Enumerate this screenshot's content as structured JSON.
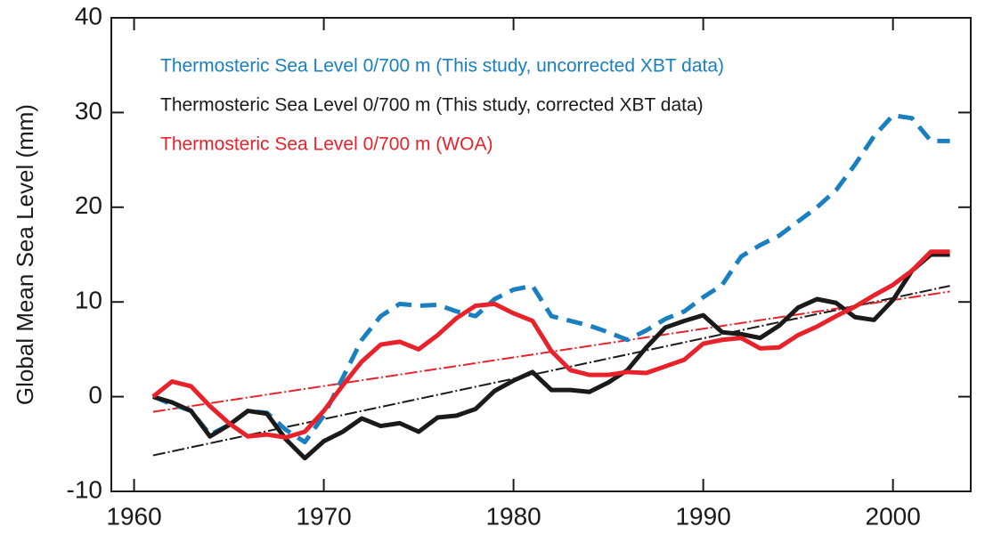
{
  "chart_data": {
    "type": "line",
    "ylabel": "Global Mean Sea Level  (mm)",
    "x": [
      1961,
      1962,
      1963,
      1964,
      1965,
      1966,
      1967,
      1968,
      1969,
      1970,
      1971,
      1972,
      1973,
      1974,
      1975,
      1976,
      1977,
      1978,
      1979,
      1980,
      1981,
      1982,
      1983,
      1984,
      1985,
      1986,
      1987,
      1988,
      1989,
      1990,
      1991,
      1992,
      1993,
      1994,
      1995,
      1996,
      1997,
      1998,
      1999,
      2000,
      2001,
      2002,
      2003
    ],
    "series": [
      {
        "name": "Thermosteric Sea Level 0/700 m (This study, uncorrected XBT data)",
        "color": "#1a7fc1",
        "dashed": true,
        "values": [
          0,
          -0.8,
          -1.5,
          -4,
          -3,
          -1.5,
          -1.7,
          -3.5,
          -4.8,
          -2,
          2,
          6,
          8.5,
          9.8,
          9.6,
          9.7,
          9,
          8.5,
          10.3,
          11.3,
          11.7,
          8.5,
          8,
          7.5,
          6.8,
          6,
          7,
          8.2,
          9,
          10.5,
          11.8,
          14.8,
          16,
          17,
          18.5,
          20,
          21.8,
          24.5,
          27.5,
          29.7,
          29.4,
          27,
          27
        ]
      },
      {
        "name": "Thermosteric Sea Level 0/700 m (This study, corrected XBT data)",
        "color": "#1a1a1a",
        "dashed": false,
        "values": [
          0,
          -0.6,
          -1.5,
          -4.2,
          -3,
          -1.5,
          -1.8,
          -4.5,
          -6.5,
          -4.7,
          -3.7,
          -2.3,
          -3.1,
          -2.8,
          -3.7,
          -2.2,
          -2,
          -1.3,
          0.6,
          1.7,
          2.6,
          0.7,
          0.7,
          0.5,
          1.5,
          2.8,
          5.2,
          7.3,
          8,
          8.6,
          6.8,
          6.6,
          6.2,
          7.5,
          9.4,
          10.3,
          9.9,
          8.4,
          8.1,
          10.2,
          13.3,
          15,
          15
        ]
      },
      {
        "name": "Thermosteric Sea Level 0/700 m (WOA)",
        "color": "#e8222a",
        "dashed": false,
        "values": [
          0,
          1.6,
          1.1,
          -1,
          -2.8,
          -4.2,
          -4,
          -4.3,
          -3.7,
          -1.5,
          1.2,
          3.7,
          5.5,
          5.8,
          5,
          6.5,
          8.3,
          9.6,
          9.8,
          8.8,
          8,
          4.8,
          2.8,
          2.3,
          2.3,
          2.6,
          2.5,
          3.2,
          3.9,
          5.6,
          6,
          6.2,
          5.1,
          5.2,
          6.5,
          7.4,
          8.5,
          9.5,
          10.7,
          11.8,
          13.3,
          15.3,
          15.3
        ]
      }
    ],
    "trend_lines": [
      {
        "color": "#1a1a1a",
        "x": [
          1961,
          2003
        ],
        "values": [
          -6.2,
          11.7
        ]
      },
      {
        "color": "#e8222a",
        "x": [
          1961,
          2003
        ],
        "values": [
          -1.6,
          11.1
        ]
      }
    ],
    "xlim": [
      1958.8,
      2004.1
    ],
    "xticks": [
      1960,
      1970,
      1980,
      1990,
      2000
    ],
    "ylim": [
      -10,
      40
    ],
    "yticks": [
      -10,
      0,
      10,
      20,
      30,
      40
    ]
  }
}
